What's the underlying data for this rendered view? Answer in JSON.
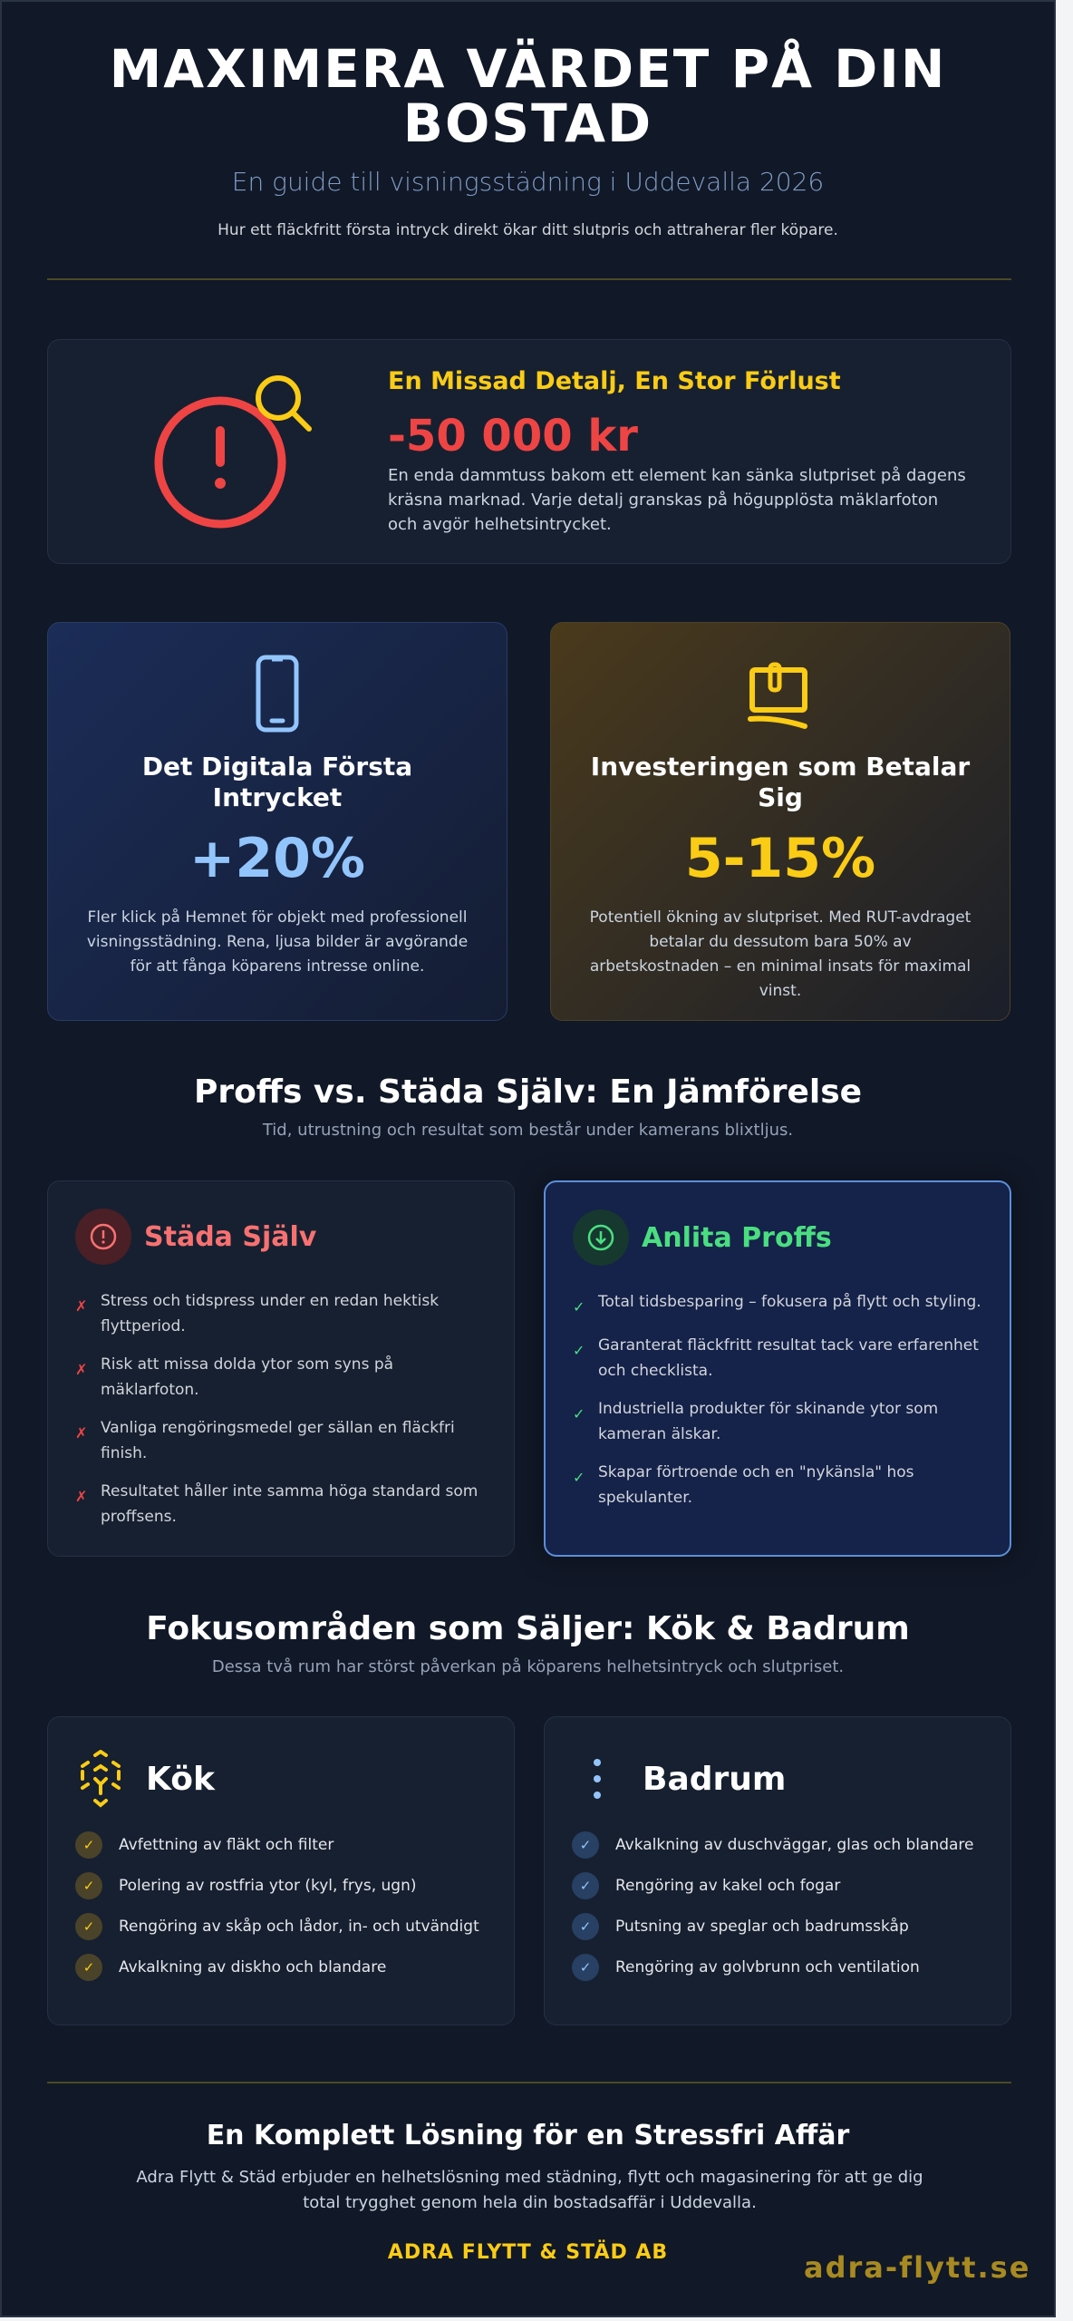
{
  "header": {
    "title_line1": "MAXIMERA VÄRDET PÅ DIN",
    "title_line2": "BOSTAD",
    "subtitle": "En guide till visningsstädning i Uddevalla 2026",
    "tagline": "Hur ett fläckfritt första intryck direkt ökar ditt slutpris och attraherar fler köpare."
  },
  "loss_card": {
    "icon": "alert-magnifier-icon",
    "heading": "En Missad Detalj, En Stor Förlust",
    "value": "-50 000 kr",
    "text": "En enda dammtuss bakom ett element kan sänka slutpriset på dagens kräsna marknad. Varje detalj granskas på högupplösta mäklarfoton och avgör helhetsintrycket."
  },
  "stats": [
    {
      "icon": "smartphone-icon",
      "title": "Det Digitala Första Intrycket",
      "value": "+20%",
      "text": "Fler klick på Hemnet för objekt med professionell visningsstädning. Rena, ljusa bilder är avgörande för att fånga köparens intresse online.",
      "color": "#93c5fd"
    },
    {
      "icon": "money-hand-icon",
      "title": "Investeringen som Betalar Sig",
      "value": "5-15%",
      "text": "Potentiell ökning av slutpriset. Med RUT-avdraget betalar du dessutom bara 50% av arbetskostnaden – en minimal insats för maximal vinst.",
      "color": "#facc15"
    }
  ],
  "comparison": {
    "title": "Proffs vs. Städa Själv: En Jämförelse",
    "subtitle": "Tid, utrustning och resultat som består under kamerans blixtljus.",
    "self": {
      "label": "Städa Själv",
      "mark": "✗",
      "items": [
        "Stress och tidspress under en redan hektisk flyttperiod.",
        "Risk att missa dolda ytor som syns på mäklarfoton.",
        "Vanliga rengöringsmedel ger sällan en fläckfri finish.",
        "Resultatet håller inte samma höga standard som proffsens."
      ]
    },
    "pro": {
      "label": "Anlita Proffs",
      "mark": "✓",
      "items": [
        "Total tidsbesparing – fokusera på flytt och styling.",
        "Garanterat fläckfritt resultat tack vare erfarenhet och checklista.",
        "Industriella produkter för skinande ytor som kameran älskar.",
        "Skapar förtroende och en \"nykänsla\" hos spekulanter."
      ]
    }
  },
  "focus": {
    "title": "Fokusområden som Säljer: Kök & Badrum",
    "subtitle": "Dessa två rum har störst påverkan på köparens helhetsintryck och slutpriset.",
    "kitchen": {
      "label": "Kök",
      "items": [
        "Avfettning av fläkt och filter",
        "Polering av rostfria ytor (kyl, frys, ugn)",
        "Rengöring av skåp och lådor, in- och utvändigt",
        "Avkalkning av diskho och blandare"
      ]
    },
    "bathroom": {
      "label": "Badrum",
      "items": [
        "Avkalkning av duschväggar, glas och blandare",
        "Rengöring av kakel och fogar",
        "Putsning av speglar och badrumsskåp",
        "Rengöring av golvbrunn och ventilation"
      ]
    },
    "check": "✓"
  },
  "footer": {
    "title": "En Komplett Lösning för en Stressfri Affär",
    "text": "Adra Flytt & Städ erbjuder en helhetslösning med städning, flytt och magasinering för att ge dig total trygghet genom hela din bostadsaffär i Uddevalla.",
    "brand": "ADRA FLYTT & STÄD AB",
    "watermark": "adra-flytt.se"
  }
}
